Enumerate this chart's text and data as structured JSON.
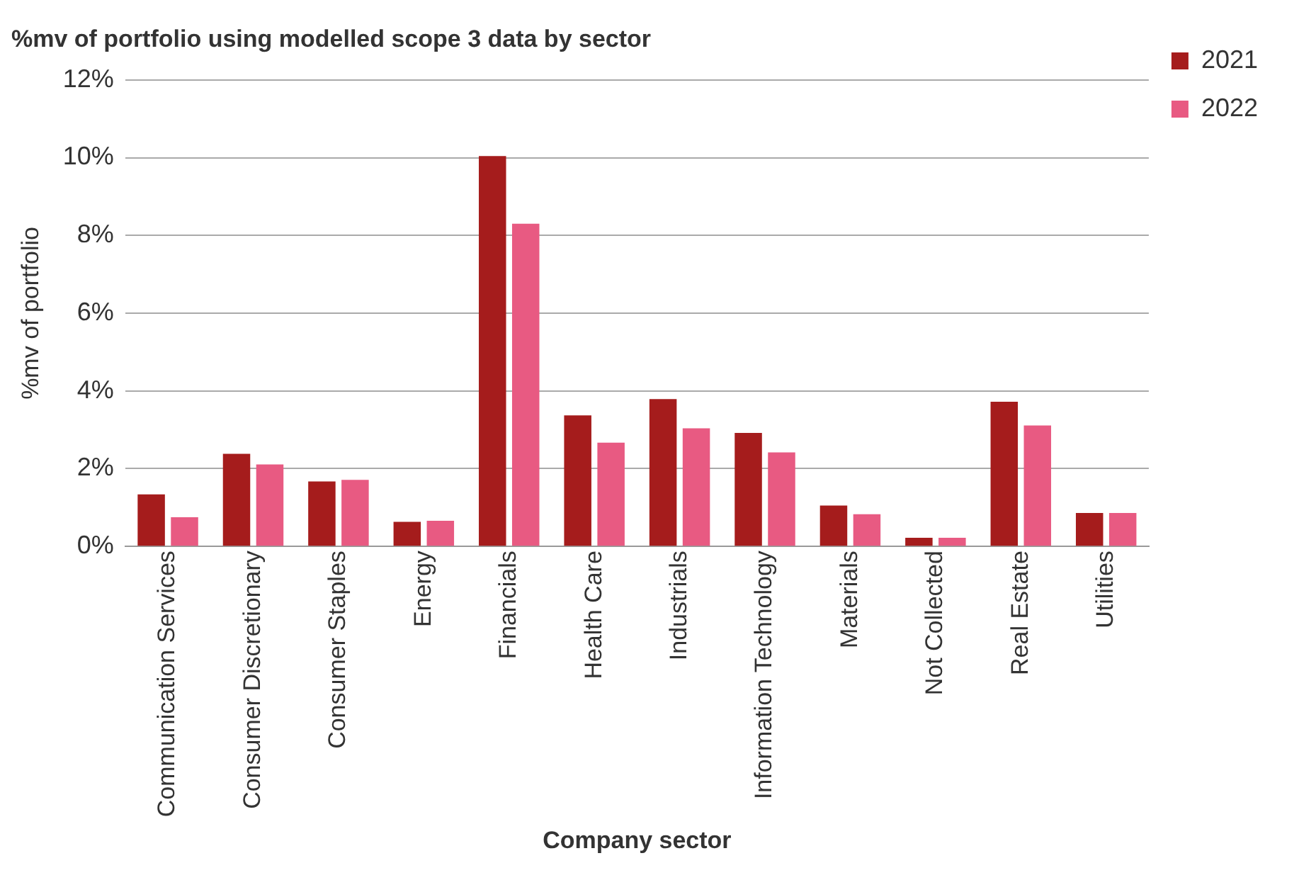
{
  "chart_data": {
    "type": "bar",
    "title": "%mv of portfolio using modelled scope 3 data by sector",
    "xlabel": "Company sector",
    "ylabel": "%mv of portfolio",
    "categories": [
      "Communication Services",
      "Consumer Discretionary",
      "Consumer Staples",
      "Energy",
      "Financials",
      "Health Care",
      "Industrials",
      "Information Technology",
      "Materials",
      "Not Collected",
      "Real Estate",
      "Utilities"
    ],
    "series": [
      {
        "name": "2021",
        "color": "#a51c1c",
        "values": [
          1.34,
          2.38,
          1.67,
          0.63,
          10.04,
          3.37,
          3.79,
          2.92,
          1.05,
          0.22,
          3.72,
          0.86
        ]
      },
      {
        "name": "2022",
        "color": "#e85a82",
        "values": [
          0.75,
          2.11,
          1.71,
          0.66,
          8.3,
          2.67,
          3.04,
          2.42,
          0.83,
          0.22,
          3.11,
          0.86
        ]
      }
    ],
    "ylim": [
      0,
      12
    ],
    "yticks": [
      {
        "value": 0,
        "label": "0%"
      },
      {
        "value": 2,
        "label": "2%"
      },
      {
        "value": 4,
        "label": "4%"
      },
      {
        "value": 6,
        "label": "6%"
      },
      {
        "value": 8,
        "label": "8%"
      },
      {
        "value": 10,
        "label": "10%"
      },
      {
        "value": 12,
        "label": "12%"
      }
    ],
    "grid": "y",
    "legend": "top right"
  }
}
